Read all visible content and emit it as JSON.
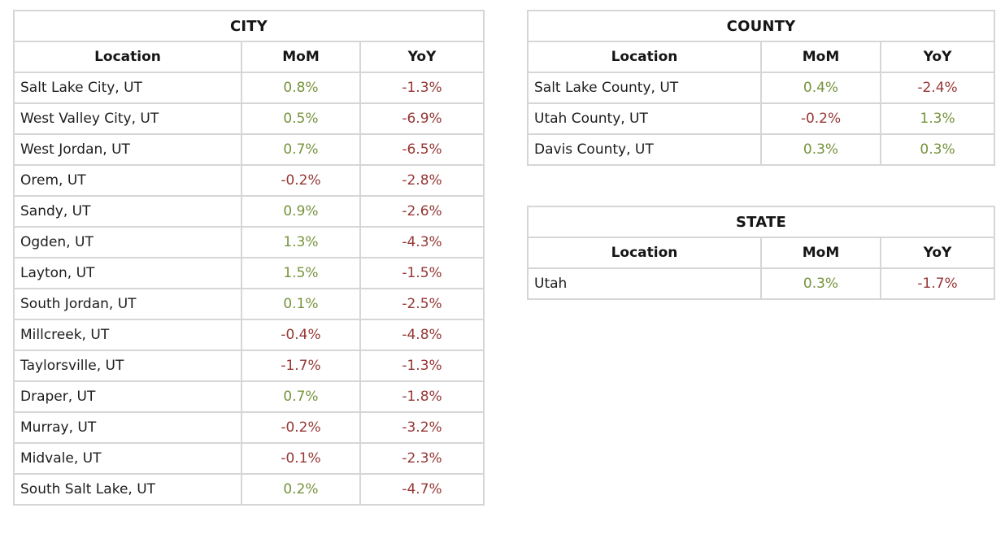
{
  "palette": {
    "positive": "#76933c",
    "negative": "#953735",
    "header_text": "#151515",
    "body_text": "#1d1d1d",
    "border": "#d6d6d6",
    "background": "#ffffff"
  },
  "chart_data": [
    {
      "type": "table",
      "title": "CITY",
      "columns": [
        "Location",
        "MoM",
        "YoY"
      ],
      "rows": [
        [
          "Salt Lake City, UT",
          "0.8%",
          "-1.3%"
        ],
        [
          "West Valley City, UT",
          "0.5%",
          "-6.9%"
        ],
        [
          "West Jordan, UT",
          "0.7%",
          "-6.5%"
        ],
        [
          "Orem, UT",
          "-0.2%",
          "-2.8%"
        ],
        [
          "Sandy, UT",
          "0.9%",
          "-2.6%"
        ],
        [
          "Ogden, UT",
          "1.3%",
          "-4.3%"
        ],
        [
          "Layton, UT",
          "1.5%",
          "-1.5%"
        ],
        [
          "South Jordan, UT",
          "0.1%",
          "-2.5%"
        ],
        [
          "Millcreek, UT",
          "-0.4%",
          "-4.8%"
        ],
        [
          "Taylorsville, UT",
          "-1.7%",
          "-1.3%"
        ],
        [
          "Draper, UT",
          "0.7%",
          "-1.8%"
        ],
        [
          "Murray, UT",
          "-0.2%",
          "-3.2%"
        ],
        [
          "Midvale, UT",
          "-0.1%",
          "-2.3%"
        ],
        [
          "South Salt Lake, UT",
          "0.2%",
          "-4.7%"
        ]
      ]
    },
    {
      "type": "table",
      "title": "COUNTY",
      "columns": [
        "Location",
        "MoM",
        "YoY"
      ],
      "rows": [
        [
          "Salt Lake County, UT",
          "0.4%",
          "-2.4%"
        ],
        [
          "Utah County, UT",
          "-0.2%",
          "1.3%"
        ],
        [
          "Davis County, UT",
          "0.3%",
          "0.3%"
        ]
      ]
    },
    {
      "type": "table",
      "title": "STATE",
      "columns": [
        "Location",
        "MoM",
        "YoY"
      ],
      "rows": [
        [
          "Utah",
          "0.3%",
          "-1.7%"
        ]
      ]
    }
  ]
}
